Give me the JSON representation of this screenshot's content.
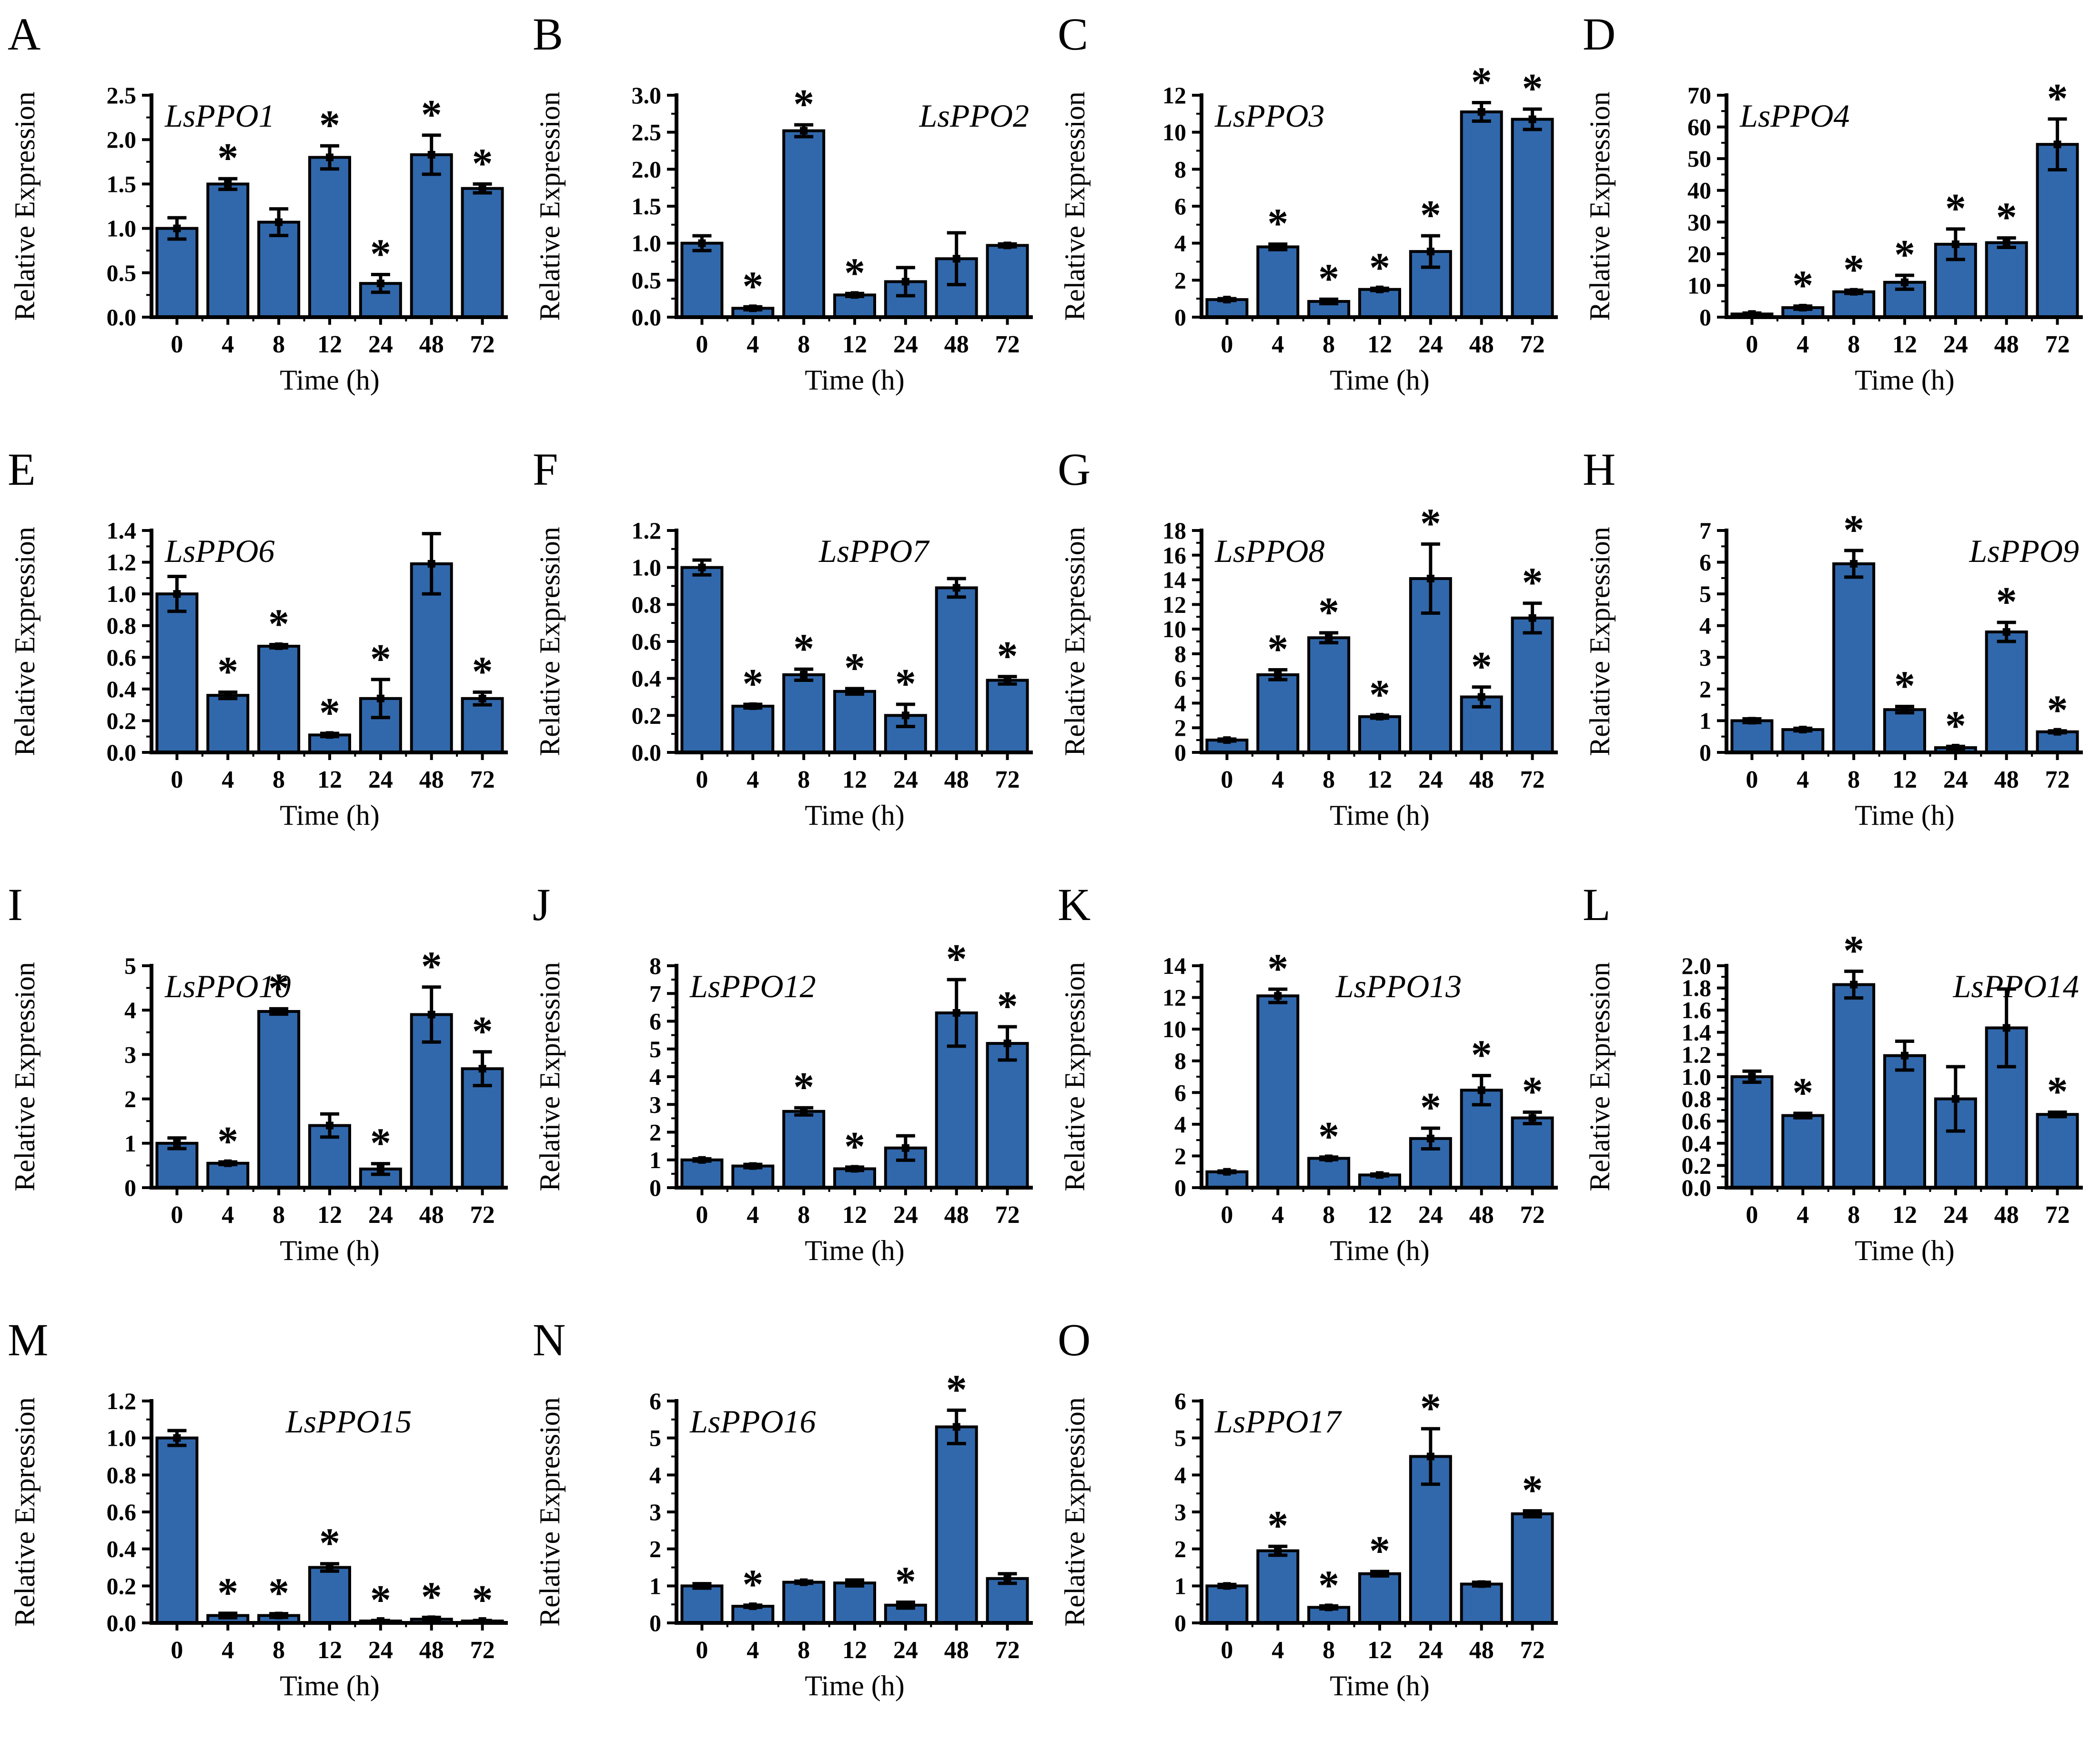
{
  "figure": {
    "background_color": "#ffffff",
    "bar_color": "#3168ac",
    "bar_edge_color": "#000000",
    "axis_color": "#000000",
    "text_color": "#000000",
    "significance_marker": "*",
    "ylabel": "Relative Expression",
    "xlabel": "Time (h)",
    "categories": [
      "0",
      "4",
      "8",
      "12",
      "24",
      "48",
      "72"
    ]
  },
  "chart_data": [
    {
      "type": "bar",
      "panel": "A",
      "title": "LsPPO1",
      "title_align": "left",
      "ylim": [
        0,
        2.5
      ],
      "y_ticks": [
        "0.0",
        "0.5",
        "1.0",
        "1.5",
        "2.0",
        "2.5"
      ],
      "values": [
        1.0,
        1.5,
        1.07,
        1.8,
        0.38,
        1.83,
        1.45
      ],
      "errors": [
        0.12,
        0.06,
        0.15,
        0.13,
        0.1,
        0.22,
        0.05
      ],
      "significant": [
        false,
        true,
        false,
        true,
        true,
        true,
        true
      ]
    },
    {
      "type": "bar",
      "panel": "B",
      "title": "LsPPO2",
      "title_align": "right",
      "ylim": [
        0,
        3.0
      ],
      "y_ticks": [
        "0.0",
        "0.5",
        "1.0",
        "1.5",
        "2.0",
        "2.5",
        "3.0"
      ],
      "values": [
        1.0,
        0.12,
        2.52,
        0.3,
        0.48,
        0.79,
        0.97
      ],
      "errors": [
        0.1,
        0.02,
        0.08,
        0.02,
        0.19,
        0.35,
        0.02
      ],
      "significant": [
        false,
        true,
        true,
        true,
        false,
        false,
        false
      ]
    },
    {
      "type": "bar",
      "panel": "C",
      "title": "LsPPO3",
      "title_align": "left",
      "ylim": [
        0,
        12
      ],
      "y_ticks": [
        "0",
        "2",
        "4",
        "6",
        "8",
        "10",
        "12"
      ],
      "values": [
        0.95,
        3.8,
        0.85,
        1.5,
        3.55,
        11.1,
        10.7
      ],
      "errors": [
        0.05,
        0.15,
        0.12,
        0.06,
        0.85,
        0.5,
        0.55
      ],
      "significant": [
        false,
        true,
        true,
        true,
        true,
        true,
        true
      ]
    },
    {
      "type": "bar",
      "panel": "D",
      "title": "LsPPO4",
      "title_align": "left",
      "ylim": [
        0,
        70
      ],
      "y_ticks": [
        "0",
        "10",
        "20",
        "30",
        "40",
        "50",
        "60",
        "70"
      ],
      "values": [
        1,
        3,
        8,
        11,
        23,
        23.5,
        54.5
      ],
      "errors": [
        0.3,
        0.5,
        0.5,
        2.2,
        4.8,
        1.5,
        8
      ],
      "significant": [
        false,
        true,
        true,
        true,
        true,
        true,
        true
      ]
    },
    {
      "type": "bar",
      "panel": "E",
      "title": "LsPPO6",
      "title_align": "left",
      "ylim": [
        0,
        1.4
      ],
      "y_ticks": [
        "0.0",
        "0.2",
        "0.4",
        "0.6",
        "0.8",
        "1.0",
        "1.2",
        "1.4"
      ],
      "values": [
        1.0,
        0.36,
        0.67,
        0.11,
        0.34,
        1.19,
        0.34
      ],
      "errors": [
        0.11,
        0.02,
        0.01,
        0.01,
        0.12,
        0.19,
        0.04
      ],
      "significant": [
        false,
        true,
        true,
        true,
        true,
        false,
        true
      ]
    },
    {
      "type": "bar",
      "panel": "F",
      "title": "LsPPO7",
      "title_align": "center",
      "ylim": [
        0,
        1.2
      ],
      "y_ticks": [
        "0.0",
        "0.2",
        "0.4",
        "0.6",
        "0.8",
        "1.0",
        "1.2"
      ],
      "values": [
        1.0,
        0.25,
        0.42,
        0.33,
        0.2,
        0.89,
        0.39
      ],
      "errors": [
        0.04,
        0.01,
        0.03,
        0.015,
        0.06,
        0.05,
        0.02
      ],
      "significant": [
        false,
        true,
        true,
        true,
        true,
        false,
        true
      ]
    },
    {
      "type": "bar",
      "panel": "G",
      "title": "LsPPO8",
      "title_align": "left",
      "ylim": [
        0,
        18
      ],
      "y_ticks": [
        "0",
        "2",
        "4",
        "6",
        "8",
        "10",
        "12",
        "14",
        "16",
        "18"
      ],
      "values": [
        1.0,
        6.3,
        9.3,
        2.9,
        14.1,
        4.5,
        10.9
      ],
      "errors": [
        0.08,
        0.4,
        0.4,
        0.12,
        2.8,
        0.8,
        1.2
      ],
      "significant": [
        false,
        true,
        true,
        true,
        true,
        true,
        true
      ]
    },
    {
      "type": "bar",
      "panel": "H",
      "title": "LsPPO9",
      "title_align": "right",
      "ylim": [
        0,
        7
      ],
      "y_ticks": [
        "0",
        "1",
        "2",
        "3",
        "4",
        "5",
        "6",
        "7"
      ],
      "values": [
        1.0,
        0.72,
        5.95,
        1.35,
        0.15,
        3.8,
        0.65
      ],
      "errors": [
        0.06,
        0.04,
        0.42,
        0.1,
        0.04,
        0.3,
        0.03
      ],
      "significant": [
        false,
        false,
        true,
        true,
        true,
        true,
        true
      ]
    },
    {
      "type": "bar",
      "panel": "I",
      "title": "LsPPO10",
      "title_align": "left",
      "ylim": [
        0,
        5
      ],
      "y_ticks": [
        "0",
        "1",
        "2",
        "3",
        "4",
        "5"
      ],
      "values": [
        1.0,
        0.55,
        3.97,
        1.4,
        0.42,
        3.9,
        2.68
      ],
      "errors": [
        0.12,
        0.03,
        0.06,
        0.26,
        0.12,
        0.62,
        0.38
      ],
      "significant": [
        false,
        true,
        true,
        false,
        true,
        true,
        true
      ]
    },
    {
      "type": "bar",
      "panel": "J",
      "title": "LsPPO12",
      "title_align": "left",
      "ylim": [
        0,
        8
      ],
      "y_ticks": [
        "0",
        "1",
        "2",
        "3",
        "4",
        "5",
        "6",
        "7",
        "8"
      ],
      "values": [
        1.0,
        0.78,
        2.75,
        0.68,
        1.43,
        6.3,
        5.2
      ],
      "errors": [
        0.04,
        0.06,
        0.13,
        0.06,
        0.44,
        1.2,
        0.6
      ],
      "significant": [
        false,
        false,
        true,
        true,
        false,
        true,
        true
      ]
    },
    {
      "type": "bar",
      "panel": "K",
      "title": "LsPPO13",
      "title_align": "center",
      "ylim": [
        0,
        14
      ],
      "y_ticks": [
        "0",
        "2",
        "4",
        "6",
        "8",
        "10",
        "12",
        "14"
      ],
      "values": [
        1.0,
        12.1,
        1.85,
        0.8,
        3.1,
        6.15,
        4.4
      ],
      "errors": [
        0.05,
        0.42,
        0.08,
        0.06,
        0.65,
        0.92,
        0.36
      ],
      "significant": [
        false,
        true,
        true,
        false,
        true,
        true,
        true
      ]
    },
    {
      "type": "bar",
      "panel": "L",
      "title": "LsPPO14",
      "title_align": "right",
      "ylim": [
        0,
        2.0
      ],
      "y_ticks": [
        "0.0",
        "0.2",
        "0.4",
        "0.6",
        "0.8",
        "1.0",
        "1.2",
        "1.4",
        "1.6",
        "1.8",
        "2.0"
      ],
      "values": [
        1.0,
        0.65,
        1.83,
        1.19,
        0.8,
        1.44,
        0.66
      ],
      "errors": [
        0.05,
        0.02,
        0.12,
        0.13,
        0.29,
        0.35,
        0.02
      ],
      "significant": [
        false,
        true,
        true,
        false,
        false,
        false,
        true
      ]
    },
    {
      "type": "bar",
      "panel": "M",
      "title": "LsPPO15",
      "title_align": "center",
      "ylim": [
        0,
        1.2
      ],
      "y_ticks": [
        "0.0",
        "0.2",
        "0.4",
        "0.6",
        "0.8",
        "1.0",
        "1.2"
      ],
      "values": [
        1.0,
        0.04,
        0.04,
        0.3,
        0.005,
        0.02,
        0.005
      ],
      "errors": [
        0.04,
        0.012,
        0.01,
        0.02,
        0.003,
        0.01,
        0.003
      ],
      "significant": [
        false,
        true,
        true,
        true,
        true,
        true,
        true
      ]
    },
    {
      "type": "bar",
      "panel": "N",
      "title": "LsPPO16",
      "title_align": "left",
      "ylim": [
        0,
        6
      ],
      "y_ticks": [
        "0",
        "1",
        "2",
        "3",
        "4",
        "5",
        "6"
      ],
      "values": [
        1.0,
        0.45,
        1.1,
        1.08,
        0.48,
        5.3,
        1.2
      ],
      "errors": [
        0.06,
        0.03,
        0.03,
        0.08,
        0.08,
        0.45,
        0.13
      ],
      "significant": [
        false,
        true,
        false,
        false,
        true,
        true,
        false
      ]
    },
    {
      "type": "bar",
      "panel": "O",
      "title": "LsPPO17",
      "title_align": "left",
      "ylim": [
        0,
        6
      ],
      "y_ticks": [
        "0",
        "1",
        "2",
        "3",
        "4",
        "5",
        "6"
      ],
      "values": [
        1.0,
        1.95,
        0.42,
        1.33,
        4.5,
        1.05,
        2.95
      ],
      "errors": [
        0.04,
        0.12,
        0.04,
        0.06,
        0.75,
        0.05,
        0.08
      ],
      "significant": [
        false,
        true,
        true,
        true,
        true,
        false,
        true
      ]
    }
  ]
}
